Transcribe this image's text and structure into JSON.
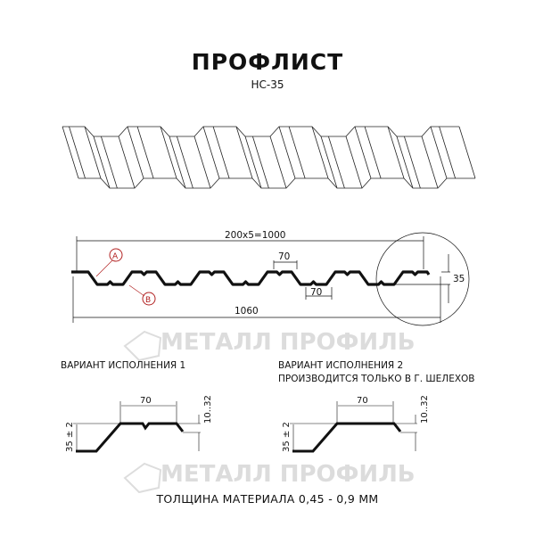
{
  "title": "ПРОФЛИСТ",
  "subtitle": "НС-35",
  "watermark": "МЕТАЛЛ ПРОФИЛЬ",
  "profile": {
    "pitch_label": "200x5=1000",
    "total_width_label": "1060",
    "top_flat_label": "70",
    "bottom_flat_label": "70",
    "height_label": "35",
    "marker_a": "A",
    "marker_b": "B"
  },
  "variant1": {
    "title": "ВАРИАНТ ИСПОЛНЕНИЯ 1",
    "width_label": "70",
    "height_label": "35 ± 2",
    "edge_label": "10..32"
  },
  "variant2": {
    "title": "ВАРИАНТ ИСПОЛНЕНИЯ 2",
    "note": "ПРОИЗВОДИТСЯ ТОЛЬКО В Г. ШЕЛЕХОВ",
    "width_label": "70",
    "height_label": "35 ± 2",
    "edge_label": "10..32"
  },
  "footer": "ТОЛЩИНА МАТЕРИАЛА 0,45 - 0,9 ММ",
  "colors": {
    "line": "#111111",
    "marker": "#b22222",
    "watermark": "#d8d8d8"
  }
}
